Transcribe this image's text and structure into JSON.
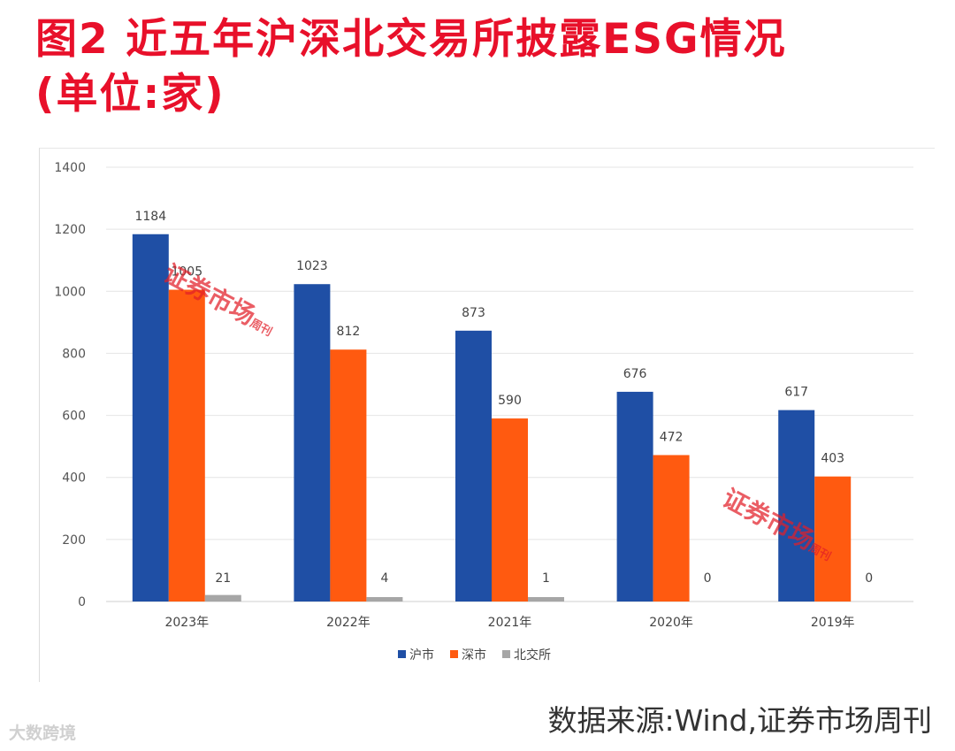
{
  "title": {
    "line1": "图2 近五年沪深北交易所披露ESG情况",
    "line2": "(单位:家)"
  },
  "source": "数据来源:Wind,证券市场周刊",
  "watermark": {
    "logo": "大数跨境",
    "stamp_text": "证券市场",
    "stamp_sub": "周刊"
  },
  "colors": {
    "title": "#e8102a",
    "sh": "#1f4fa5",
    "sz": "#ff5a10",
    "bj": "#a6a6a6"
  },
  "chart_data": {
    "type": "bar",
    "title": "",
    "xlabel": "",
    "ylabel": "",
    "ylim": [
      0,
      1400
    ],
    "yticks": [
      0,
      200,
      400,
      600,
      800,
      1000,
      1200,
      1400
    ],
    "grid": true,
    "legend_position": "bottom",
    "categories": [
      "2023年",
      "2022年",
      "2021年",
      "2020年",
      "2019年"
    ],
    "series": [
      {
        "name": "沪市",
        "color": "#1f4fa5",
        "values": [
          1184,
          1023,
          873,
          676,
          617
        ]
      },
      {
        "name": "深市",
        "color": "#ff5a10",
        "values": [
          1005,
          812,
          590,
          472,
          403
        ]
      },
      {
        "name": "北交所",
        "color": "#a6a6a6",
        "values": [
          21,
          4,
          1,
          0,
          0
        ]
      }
    ]
  }
}
